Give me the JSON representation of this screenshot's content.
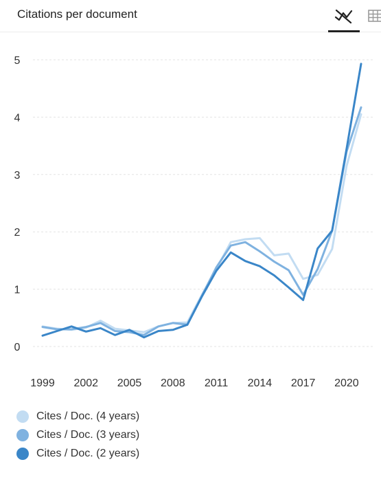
{
  "header": {
    "title": "Citations per document"
  },
  "colors": {
    "series_4y": "#c2dcf2",
    "series_3y": "#7fb2e0",
    "series_2y": "#3a86c8",
    "grid": "#e3e3e3",
    "axis_text": "#333333"
  },
  "icons": {
    "line_chart": "line-chart-icon",
    "table": "table-icon"
  },
  "chart_data": {
    "type": "line",
    "title": "Citations per document",
    "xlabel": "",
    "ylabel": "",
    "x": [
      1999,
      2000,
      2001,
      2002,
      2003,
      2004,
      2005,
      2006,
      2007,
      2008,
      2009,
      2010,
      2011,
      2012,
      2013,
      2014,
      2015,
      2016,
      2017,
      2018,
      2019,
      2020,
      2021
    ],
    "x_tick_labels": [
      "1999",
      "2002",
      "2005",
      "2008",
      "2011",
      "2014",
      "2017",
      "2020"
    ],
    "y_tick_labels": [
      "0",
      "1",
      "2",
      "3",
      "4",
      "5"
    ],
    "ylim": [
      0,
      5
    ],
    "grid": true,
    "legend_position": "bottom-left",
    "series": [
      {
        "name": "Cites / Doc. (4 years)",
        "values": [
          0.35,
          0.31,
          0.29,
          0.33,
          0.45,
          0.31,
          0.28,
          0.25,
          0.35,
          0.41,
          0.42,
          0.9,
          1.35,
          1.82,
          1.87,
          1.89,
          1.59,
          1.62,
          1.18,
          1.25,
          1.7,
          3.15,
          4.05
        ]
      },
      {
        "name": "Cites / Doc. (3 years)",
        "values": [
          0.34,
          0.3,
          0.3,
          0.34,
          0.41,
          0.27,
          0.25,
          0.2,
          0.35,
          0.41,
          0.38,
          0.88,
          1.38,
          1.76,
          1.82,
          1.66,
          1.48,
          1.33,
          0.9,
          1.35,
          2.02,
          3.4,
          4.17
        ]
      },
      {
        "name": "Cites / Doc. (2 years)",
        "values": [
          0.19,
          0.27,
          0.35,
          0.26,
          0.32,
          0.2,
          0.29,
          0.16,
          0.27,
          0.29,
          0.38,
          0.87,
          1.32,
          1.64,
          1.49,
          1.4,
          1.24,
          1.03,
          0.81,
          1.71,
          2.02,
          3.45,
          4.93
        ]
      }
    ]
  },
  "legend": {
    "items": [
      {
        "label": "Cites / Doc. (4 years)"
      },
      {
        "label": "Cites / Doc. (3 years)"
      },
      {
        "label": "Cites / Doc. (2 years)"
      }
    ]
  }
}
